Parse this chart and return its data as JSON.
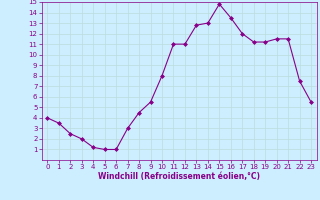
{
  "x": [
    0,
    1,
    2,
    3,
    4,
    5,
    6,
    7,
    8,
    9,
    10,
    11,
    12,
    13,
    14,
    15,
    16,
    17,
    18,
    19,
    20,
    21,
    22,
    23
  ],
  "y": [
    4.0,
    3.5,
    2.5,
    2.0,
    1.2,
    1.0,
    1.0,
    3.0,
    4.5,
    5.5,
    8.0,
    11.0,
    11.0,
    12.8,
    13.0,
    14.8,
    13.5,
    12.0,
    11.2,
    11.2,
    11.5,
    11.5,
    7.5,
    5.5
  ],
  "line_color": "#880088",
  "marker": "D",
  "marker_size": 2.0,
  "bg_color": "#cceeff",
  "grid_color": "#bbdddd",
  "xlabel": "Windchill (Refroidissement éolien,°C)",
  "xlim": [
    -0.5,
    23.5
  ],
  "ylim": [
    0,
    15
  ],
  "xticks": [
    0,
    1,
    2,
    3,
    4,
    5,
    6,
    7,
    8,
    9,
    10,
    11,
    12,
    13,
    14,
    15,
    16,
    17,
    18,
    19,
    20,
    21,
    22,
    23
  ],
  "yticks": [
    1,
    2,
    3,
    4,
    5,
    6,
    7,
    8,
    9,
    10,
    11,
    12,
    13,
    14,
    15
  ],
  "tick_color": "#880088",
  "label_color": "#880088",
  "tick_fontsize": 5.0,
  "xlabel_fontsize": 5.5,
  "linewidth": 0.8
}
